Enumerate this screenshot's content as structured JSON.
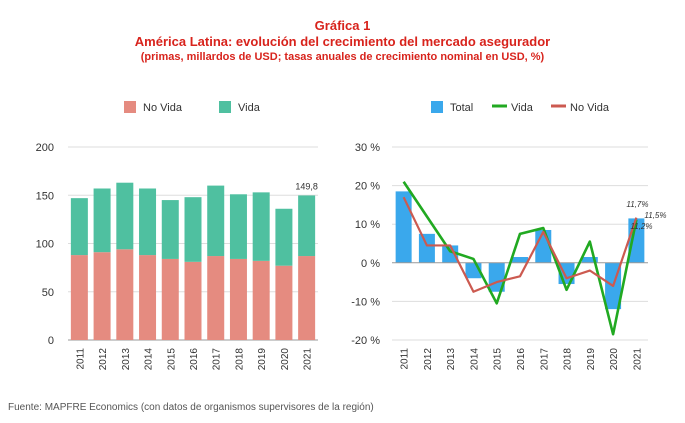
{
  "header": {
    "figure_label": "Gráfica 1",
    "title": "América Latina: evolución del crecimiento del mercado asegurador",
    "subtitle": "(primas, millardos de USD; tasas anuales de crecimiento nominal en USD, %)"
  },
  "source": "Fuente: MAPFRE Economics (con datos de organismos supervisores de la región)",
  "colors": {
    "title": "#d8231c",
    "no_vida_bar": "#e58b80",
    "vida_bar": "#4fc0a0",
    "total_bar": "#3aa8ec",
    "vida_line": "#21a921",
    "no_vida_line": "#cc5a50"
  },
  "chart_data": [
    {
      "type": "bar",
      "stacked": true,
      "categories": [
        "2011",
        "2012",
        "2013",
        "2014",
        "2015",
        "2016",
        "2017",
        "2018",
        "2019",
        "2020",
        "2021"
      ],
      "series": [
        {
          "name": "No Vida",
          "values": [
            88,
            91,
            94,
            88,
            84,
            81,
            87,
            84,
            82,
            77,
            87
          ]
        },
        {
          "name": "Vida",
          "values": [
            59,
            66,
            69,
            69,
            61,
            67,
            73,
            67,
            71,
            59,
            62.8
          ]
        }
      ],
      "ylim": [
        0,
        200
      ],
      "yticks": [
        "0",
        "50",
        "100",
        "150",
        "200"
      ],
      "grid": true,
      "legend_position": "top",
      "annotations": [
        {
          "label": "149,8",
          "category": "2021"
        }
      ]
    },
    {
      "type": "bar+line",
      "categories": [
        "2011",
        "2012",
        "2013",
        "2014",
        "2015",
        "2016",
        "2017",
        "2018",
        "2019",
        "2020",
        "2021"
      ],
      "series": [
        {
          "name": "Total",
          "kind": "bar",
          "values": [
            18.5,
            7.5,
            4.5,
            -4,
            -7.5,
            1.5,
            8.5,
            -5.5,
            1.5,
            -12,
            11.5
          ]
        },
        {
          "name": "Vida",
          "kind": "line",
          "values": [
            21,
            12,
            3,
            1,
            -10.5,
            7.5,
            9,
            -7,
            5.5,
            -18.5,
            11.2
          ]
        },
        {
          "name": "No Vida",
          "kind": "line",
          "values": [
            17,
            4.5,
            4.5,
            -7.5,
            -5,
            -3.5,
            8,
            -4,
            -2,
            -6,
            11.7
          ]
        }
      ],
      "ylim": [
        -20,
        30
      ],
      "yticks": [
        "-20 %",
        "-10 %",
        "0 %",
        "10 %",
        "20 %",
        "30 %"
      ],
      "grid": true,
      "legend_position": "top",
      "annotations": [
        {
          "label": "11,7%",
          "series": "No Vida",
          "category": "2021"
        },
        {
          "label": "11,5%",
          "series": "Total",
          "category": "2021"
        },
        {
          "label": "11,2%",
          "series": "Vida",
          "category": "2021"
        }
      ]
    }
  ]
}
